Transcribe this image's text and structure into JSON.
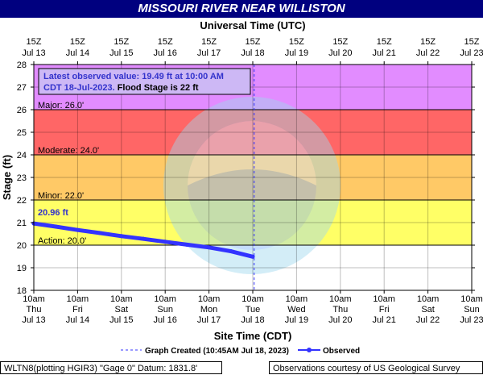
{
  "header": {
    "title": "MISSOURI RIVER NEAR WILLISTON"
  },
  "chart_data": {
    "type": "line",
    "title": "MISSOURI RIVER NEAR WILLISTON",
    "top_axis_label": "Universal Time (UTC)",
    "xlabel": "Site Time (CDT)",
    "ylabel": "Stage (ft)",
    "ylim": [
      18,
      28
    ],
    "yticks": [
      18,
      19,
      20,
      21,
      22,
      23,
      24,
      25,
      26,
      27,
      28
    ],
    "x_start": "2023-07-13 10:00 CDT",
    "x_end": "2023-07-23 10:00 CDT",
    "bottom_ticks": [
      {
        "time": "10am",
        "day": "Thu",
        "date": "Jul 13"
      },
      {
        "time": "10am",
        "day": "Fri",
        "date": "Jul 14"
      },
      {
        "time": "10am",
        "day": "Sat",
        "date": "Jul 15"
      },
      {
        "time": "10am",
        "day": "Sun",
        "date": "Jul 16"
      },
      {
        "time": "10am",
        "day": "Mon",
        "date": "Jul 17"
      },
      {
        "time": "10am",
        "day": "Tue",
        "date": "Jul 18"
      },
      {
        "time": "10am",
        "day": "Wed",
        "date": "Jul 19"
      },
      {
        "time": "10am",
        "day": "Thu",
        "date": "Jul 20"
      },
      {
        "time": "10am",
        "day": "Fri",
        "date": "Jul 21"
      },
      {
        "time": "10am",
        "day": "Sat",
        "date": "Jul 22"
      },
      {
        "time": "10am",
        "day": "Sun",
        "date": "Jul 23"
      }
    ],
    "top_ticks": [
      {
        "time": "15Z",
        "date": "Jul 13"
      },
      {
        "time": "15Z",
        "date": "Jul 14"
      },
      {
        "time": "15Z",
        "date": "Jul 15"
      },
      {
        "time": "15Z",
        "date": "Jul 16"
      },
      {
        "time": "15Z",
        "date": "Jul 17"
      },
      {
        "time": "15Z",
        "date": "Jul 18"
      },
      {
        "time": "15Z",
        "date": "Jul 19"
      },
      {
        "time": "15Z",
        "date": "Jul 20"
      },
      {
        "time": "15Z",
        "date": "Jul 21"
      },
      {
        "time": "15Z",
        "date": "Jul 22"
      },
      {
        "time": "15Z",
        "date": "Jul 23"
      }
    ],
    "flood_categories": [
      {
        "name": "Action",
        "label": "Action: 20.0'",
        "from": 20,
        "to": 22,
        "color": "#ffff66"
      },
      {
        "name": "Minor",
        "label": "Minor: 22.0'",
        "from": 22,
        "to": 24,
        "color": "#ffc966"
      },
      {
        "name": "Moderate",
        "label": "Moderate: 24.0'",
        "from": 24,
        "to": 26,
        "color": "#ff6666"
      },
      {
        "name": "Major",
        "label": "Major: 26.0'",
        "from": 26,
        "to": 28,
        "color": "#e28cff"
      }
    ],
    "graph_created": "2023-07-18 10:45",
    "series": [
      {
        "name": "Observed",
        "color": "#3333ff",
        "x": [
          "2023-07-13 10:00",
          "2023-07-13 22:00",
          "2023-07-14 10:00",
          "2023-07-14 22:00",
          "2023-07-15 10:00",
          "2023-07-15 22:00",
          "2023-07-16 10:00",
          "2023-07-16 22:00",
          "2023-07-17 10:00",
          "2023-07-17 22:00",
          "2023-07-18 10:00"
        ],
        "y": [
          20.96,
          20.82,
          20.67,
          20.54,
          20.4,
          20.28,
          20.15,
          20.02,
          19.9,
          19.73,
          19.49
        ]
      }
    ],
    "annotations": {
      "first_value_label": "20.96 ft",
      "latest_box_line1": "Latest observed value: 19.49 ft at 10:00 AM",
      "latest_box_line2_prefix": "CDT 18-Jul-2023.",
      "latest_box_line2_suffix": "Flood Stage is 22 ft"
    },
    "legend": {
      "graph_created_label": "Graph Created (10:45AM Jul 18, 2023)",
      "observed_label": "Observed"
    },
    "colors": {
      "background_below_action": "#ffffff",
      "observed_line": "#3333ff",
      "label_text": "#3333cc",
      "title_bar": "#00007f"
    }
  },
  "footer": {
    "left": "WLTN8(plotting HGIR3) \"Gage 0\" Datum: 1831.8'",
    "right": "Observations courtesy of US Geological Survey"
  }
}
